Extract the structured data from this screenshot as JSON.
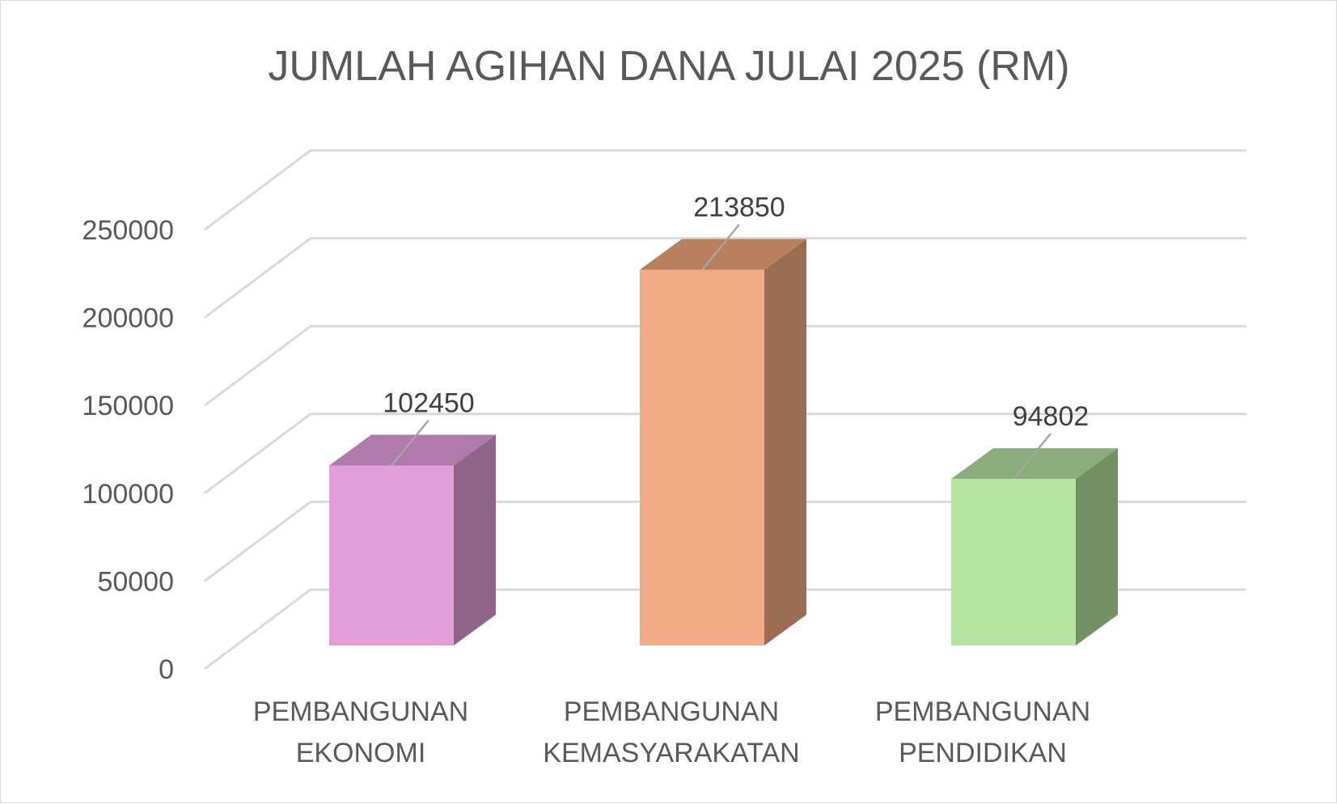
{
  "chart_data": {
    "type": "bar",
    "title": "JUMLAH AGIHAN DANA JULAI 2025 (RM)",
    "xlabel": "",
    "ylabel": "",
    "categories": [
      [
        "PEMBANGUNAN",
        "EKONOMI"
      ],
      [
        "PEMBANGUNAN",
        "KEMASYARAKATAN"
      ],
      [
        "PEMBANGUNAN",
        "PENDIDIKAN"
      ]
    ],
    "values": [
      102450,
      213850,
      94802
    ],
    "data_labels": [
      "102450",
      "213850",
      "94802"
    ],
    "ylim": [
      0,
      250000
    ],
    "yticks": [
      "0",
      "50000",
      "100000",
      "150000",
      "200000",
      "250000"
    ],
    "grid": true,
    "legend": "none",
    "style": "3d-column",
    "colors": {
      "bars": [
        {
          "front": "#E59EDC",
          "top": "#B07AAB",
          "side": "#8F668A"
        },
        {
          "front": "#F2AA84",
          "top": "#B9805E",
          "side": "#9A6C51"
        },
        {
          "front": "#B4E4A0",
          "top": "#89AD7B",
          "side": "#739264"
        }
      ],
      "grid": "#d9d9d9",
      "text": "#595959",
      "leader": "#a6a6a6"
    }
  }
}
